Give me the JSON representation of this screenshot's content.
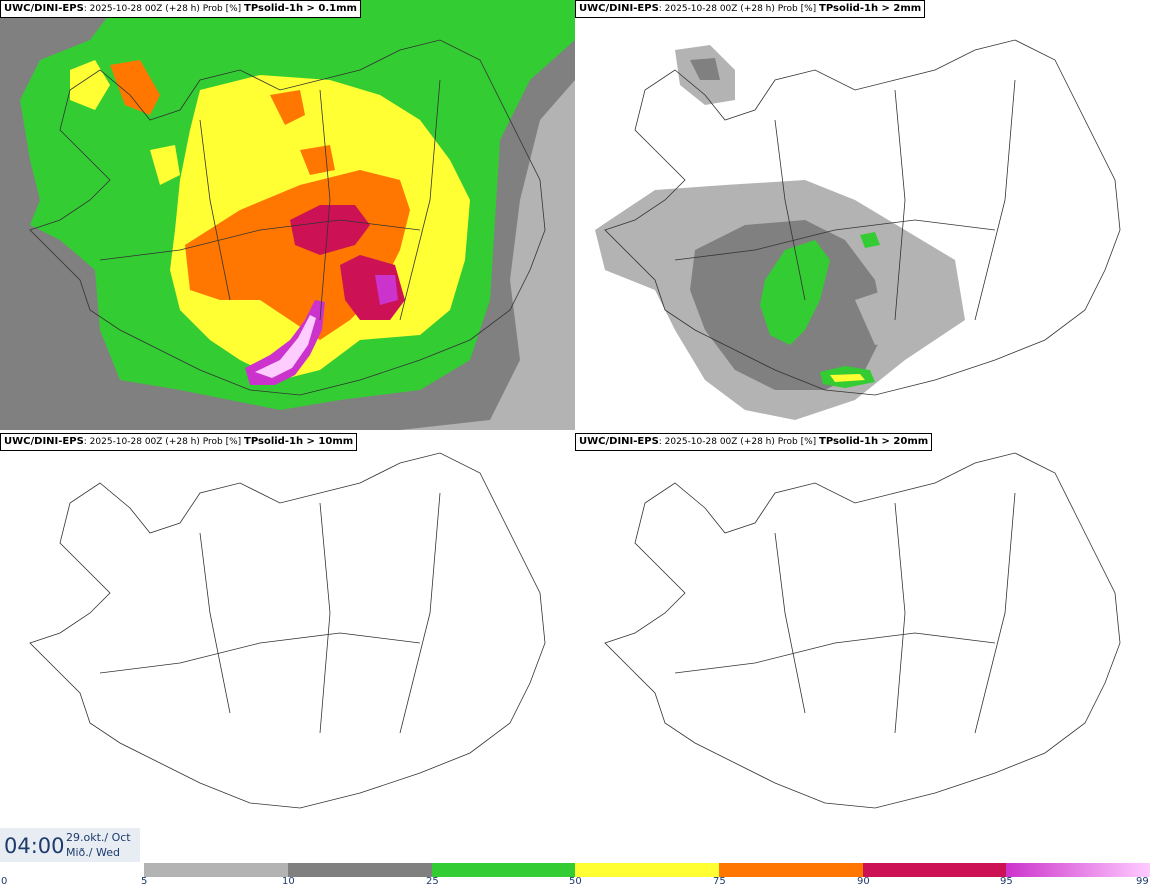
{
  "panels": [
    {
      "model": "UWC/DINI-EPS",
      "run": ": 2025-10-28 00Z (+28 h) Prob [%] ",
      "field": "TPsolid-1h > 0.1mm"
    },
    {
      "model": "UWC/DINI-EPS",
      "run": ": 2025-10-28 00Z (+28 h) Prob [%] ",
      "field": "TPsolid-1h > 2mm"
    },
    {
      "model": "UWC/DINI-EPS",
      "run": ": 2025-10-28 00Z (+28 h) Prob [%] ",
      "field": "TPsolid-1h > 10mm"
    },
    {
      "model": "UWC/DINI-EPS",
      "run": ": 2025-10-28 00Z (+28 h) Prob [%] ",
      "field": "TPsolid-1h > 20mm"
    }
  ],
  "valid_time": {
    "time": "04:00",
    "date_is": "29.okt./ Oct",
    "day": "Mið./ Wed"
  },
  "legend": {
    "ticks": [
      "0",
      "5",
      "10",
      "25",
      "50",
      "75",
      "90",
      "95",
      "99"
    ],
    "colors": {
      "5-10": "#b3b3b3",
      "10-25": "#808080",
      "25-50": "#33cc33",
      "50-75": "#ffff33",
      "75-90": "#ff7700",
      "90-95": "#cc1155",
      "95-99-start": "#cc33cc",
      "95-99-end": "#ffccff"
    }
  }
}
